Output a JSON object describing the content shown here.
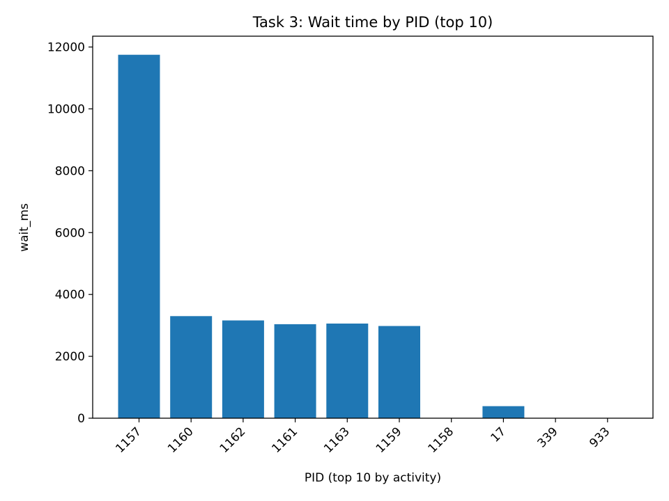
{
  "chart_data": {
    "type": "bar",
    "title": "Task 3: Wait time by PID (top 10)",
    "xlabel": "PID (top 10 by activity)",
    "ylabel": "wait_ms",
    "categories": [
      "1157",
      "1160",
      "1162",
      "1161",
      "1163",
      "1159",
      "1158",
      "17",
      "339",
      "933"
    ],
    "values": [
      11750,
      3300,
      3160,
      3040,
      3060,
      2980,
      5,
      390,
      10,
      5
    ],
    "ylim": [
      0,
      12350
    ],
    "yticks": [
      0,
      2000,
      4000,
      6000,
      8000,
      10000,
      12000
    ],
    "bar_color": "#1f77b4",
    "grid": false,
    "legend": "none"
  }
}
